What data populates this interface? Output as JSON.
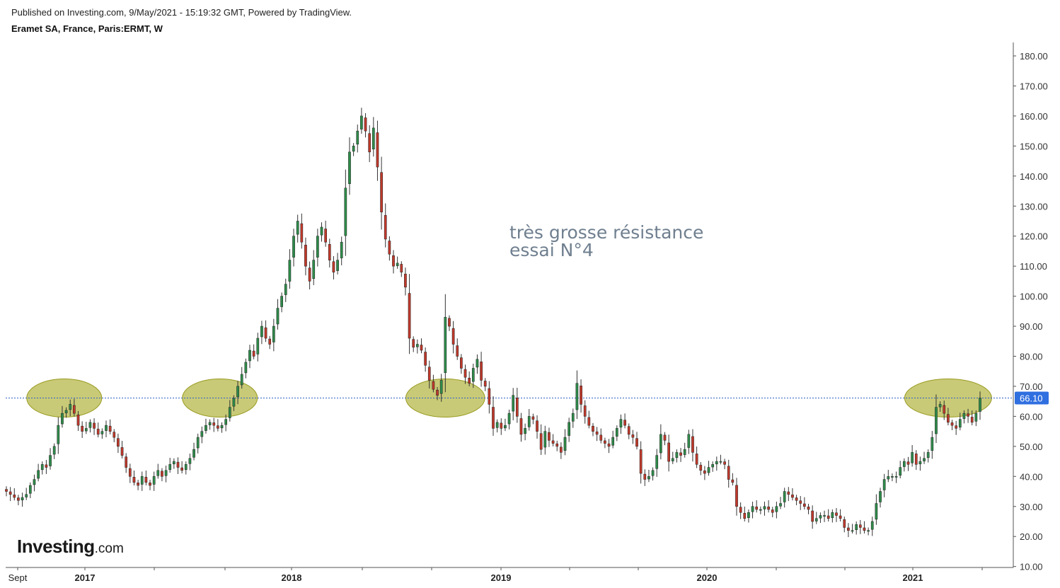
{
  "header": {
    "published": "Published on Investing.com, 9/May/2021 - 15:19:32 GMT, Powered by TradingView.",
    "symbol": "Eramet SA, France, Paris:ERMT, W"
  },
  "logo": {
    "main": "Investing",
    "suffix": ".com"
  },
  "annotation": {
    "line1": "très grosse résistance",
    "line2": "essai N°4",
    "color": "#6f7f8f"
  },
  "colors": {
    "up": "#2e8b4a",
    "down": "#c0392b",
    "ellipse_fill": "#b5b84a",
    "price_line": "#2f5fc9",
    "last_price_bg": "#2f6fe0"
  },
  "chart_data": {
    "type": "candlestick",
    "title": "Eramet SA, France, Paris:ERMT, W",
    "ylim": [
      10,
      185
    ],
    "yticks": [
      "180.00",
      "170.00",
      "160.00",
      "150.00",
      "140.00",
      "130.00",
      "120.00",
      "110.00",
      "100.00",
      "90.00",
      "80.00",
      "70.00",
      "60.00",
      "50.00",
      "40.00",
      "30.00",
      "20.00",
      "10.00"
    ],
    "xlabels": [
      "Sept",
      "2017",
      "2018",
      "2019",
      "2020",
      "2021"
    ],
    "last_price": 66.1,
    "last_price_label": "66.10",
    "highlight_level": 66.1,
    "resistance_zones": [
      {
        "from": "2016-11-06",
        "to": "2017-01-22",
        "level": 66.1
      },
      {
        "from": "2017-08-06",
        "to": "2017-10-22",
        "level": 66.1
      },
      {
        "from": "2018-09-02",
        "to": "2018-11-25",
        "level": 66.1
      },
      {
        "from": "2021-01-24",
        "to": "2021-05-02",
        "level": 66.1
      }
    ],
    "series": [
      {
        "name": "ERMT",
        "weekly_close": [
          [
            "2016-09-04",
            35
          ],
          [
            "2016-09-11",
            34
          ],
          [
            "2016-09-18",
            33
          ],
          [
            "2016-09-25",
            32
          ],
          [
            "2016-10-02",
            33
          ],
          [
            "2016-10-09",
            34
          ],
          [
            "2016-10-16",
            37
          ],
          [
            "2016-10-23",
            39
          ],
          [
            "2016-10-30",
            42
          ],
          [
            "2016-11-06",
            44
          ],
          [
            "2016-11-13",
            43
          ],
          [
            "2016-11-20",
            47
          ],
          [
            "2016-11-27",
            50
          ],
          [
            "2016-12-04",
            57
          ],
          [
            "2016-12-11",
            61
          ],
          [
            "2016-12-18",
            62
          ],
          [
            "2016-12-25",
            64
          ],
          [
            "2017-01-01",
            61
          ],
          [
            "2017-01-08",
            57
          ],
          [
            "2017-01-15",
            55
          ],
          [
            "2017-01-22",
            56
          ],
          [
            "2017-01-29",
            58
          ],
          [
            "2017-02-05",
            56
          ],
          [
            "2017-02-12",
            54
          ],
          [
            "2017-02-19",
            55
          ],
          [
            "2017-02-26",
            57
          ],
          [
            "2017-03-05",
            55
          ],
          [
            "2017-03-12",
            53
          ],
          [
            "2017-03-19",
            50
          ],
          [
            "2017-03-26",
            47
          ],
          [
            "2017-04-02",
            43
          ],
          [
            "2017-04-09",
            40
          ],
          [
            "2017-04-16",
            38
          ],
          [
            "2017-04-23",
            37
          ],
          [
            "2017-04-30",
            40
          ],
          [
            "2017-05-07",
            38
          ],
          [
            "2017-05-14",
            37
          ],
          [
            "2017-05-21",
            40
          ],
          [
            "2017-05-28",
            42
          ],
          [
            "2017-06-04",
            40
          ],
          [
            "2017-06-11",
            42
          ],
          [
            "2017-06-18",
            44
          ],
          [
            "2017-06-25",
            45
          ],
          [
            "2017-07-02",
            43
          ],
          [
            "2017-07-09",
            42
          ],
          [
            "2017-07-16",
            44
          ],
          [
            "2017-07-23",
            46
          ],
          [
            "2017-07-30",
            49
          ],
          [
            "2017-08-06",
            53
          ],
          [
            "2017-08-13",
            55
          ],
          [
            "2017-08-20",
            57
          ],
          [
            "2017-08-27",
            58
          ],
          [
            "2017-09-03",
            57
          ],
          [
            "2017-09-10",
            56
          ],
          [
            "2017-09-17",
            57
          ],
          [
            "2017-09-24",
            59
          ],
          [
            "2017-10-01",
            63
          ],
          [
            "2017-10-08",
            66
          ],
          [
            "2017-10-15",
            70
          ],
          [
            "2017-10-22",
            74
          ],
          [
            "2017-10-29",
            78
          ],
          [
            "2017-11-05",
            82
          ],
          [
            "2017-11-12",
            80
          ],
          [
            "2017-11-19",
            86
          ],
          [
            "2017-11-26",
            90
          ],
          [
            "2017-12-03",
            86
          ],
          [
            "2017-12-10",
            84
          ],
          [
            "2017-12-17",
            90
          ],
          [
            "2017-12-24",
            96
          ],
          [
            "2017-12-31",
            100
          ],
          [
            "2018-01-07",
            104
          ],
          [
            "2018-01-14",
            112
          ],
          [
            "2018-01-21",
            120
          ],
          [
            "2018-01-28",
            125
          ],
          [
            "2018-02-04",
            118
          ],
          [
            "2018-02-11",
            110
          ],
          [
            "2018-02-18",
            105
          ],
          [
            "2018-02-25",
            112
          ],
          [
            "2018-03-04",
            120
          ],
          [
            "2018-03-11",
            123
          ],
          [
            "2018-03-18",
            118
          ],
          [
            "2018-03-25",
            112
          ],
          [
            "2018-04-01",
            108
          ],
          [
            "2018-04-08",
            112
          ],
          [
            "2018-04-15",
            118
          ],
          [
            "2018-04-22",
            136
          ],
          [
            "2018-04-29",
            148
          ],
          [
            "2018-05-06",
            150
          ],
          [
            "2018-05-13",
            155
          ],
          [
            "2018-05-20",
            160
          ],
          [
            "2018-05-27",
            155
          ],
          [
            "2018-06-03",
            148
          ],
          [
            "2018-06-10",
            156
          ],
          [
            "2018-06-17",
            143
          ],
          [
            "2018-06-24",
            128
          ],
          [
            "2018-07-01",
            119
          ],
          [
            "2018-07-08",
            114
          ],
          [
            "2018-07-15",
            110
          ],
          [
            "2018-07-22",
            111
          ],
          [
            "2018-07-29",
            108
          ],
          [
            "2018-08-05",
            103
          ],
          [
            "2018-08-12",
            86
          ],
          [
            "2018-08-19",
            83
          ],
          [
            "2018-08-26",
            84
          ],
          [
            "2018-09-02",
            82
          ],
          [
            "2018-09-09",
            77
          ],
          [
            "2018-09-16",
            72
          ],
          [
            "2018-09-23",
            69
          ],
          [
            "2018-09-30",
            67
          ],
          [
            "2018-10-07",
            72
          ],
          [
            "2018-10-14",
            93
          ],
          [
            "2018-10-21",
            90
          ],
          [
            "2018-10-28",
            84
          ],
          [
            "2018-11-04",
            80
          ],
          [
            "2018-11-11",
            76
          ],
          [
            "2018-11-18",
            73
          ],
          [
            "2018-11-25",
            71
          ],
          [
            "2018-12-02",
            76
          ],
          [
            "2018-12-09",
            79
          ],
          [
            "2018-12-16",
            72
          ],
          [
            "2018-12-23",
            70
          ],
          [
            "2018-12-30",
            64
          ],
          [
            "2019-01-06",
            56
          ],
          [
            "2019-01-13",
            58
          ],
          [
            "2019-01-20",
            56
          ],
          [
            "2019-01-27",
            57
          ],
          [
            "2019-02-03",
            61
          ],
          [
            "2019-02-10",
            67
          ],
          [
            "2019-02-17",
            60
          ],
          [
            "2019-02-24",
            54
          ],
          [
            "2019-03-03",
            56
          ],
          [
            "2019-03-10",
            60
          ],
          [
            "2019-03-17",
            59
          ],
          [
            "2019-03-24",
            55
          ],
          [
            "2019-03-31",
            49
          ],
          [
            "2019-04-07",
            55
          ],
          [
            "2019-04-14",
            52
          ],
          [
            "2019-04-21",
            51
          ],
          [
            "2019-04-28",
            50
          ],
          [
            "2019-05-05",
            48
          ],
          [
            "2019-05-12",
            53
          ],
          [
            "2019-05-19",
            58
          ],
          [
            "2019-05-26",
            61
          ],
          [
            "2019-06-02",
            71
          ],
          [
            "2019-06-09",
            64
          ],
          [
            "2019-06-16",
            60
          ],
          [
            "2019-06-23",
            57
          ],
          [
            "2019-06-30",
            55
          ],
          [
            "2019-07-07",
            54
          ],
          [
            "2019-07-14",
            52
          ],
          [
            "2019-07-21",
            51
          ],
          [
            "2019-07-28",
            50
          ],
          [
            "2019-08-04",
            53
          ],
          [
            "2019-08-11",
            56
          ],
          [
            "2019-08-18",
            59
          ],
          [
            "2019-08-25",
            57
          ],
          [
            "2019-09-01",
            54
          ],
          [
            "2019-09-08",
            53
          ],
          [
            "2019-09-15",
            50
          ],
          [
            "2019-09-22",
            41
          ],
          [
            "2019-09-29",
            39
          ],
          [
            "2019-10-06",
            40
          ],
          [
            "2019-10-13",
            42
          ],
          [
            "2019-10-20",
            47
          ],
          [
            "2019-10-27",
            54
          ],
          [
            "2019-11-03",
            52
          ],
          [
            "2019-11-10",
            45
          ],
          [
            "2019-11-17",
            46
          ],
          [
            "2019-11-24",
            48
          ],
          [
            "2019-12-01",
            47
          ],
          [
            "2019-12-08",
            49
          ],
          [
            "2019-12-15",
            54
          ],
          [
            "2019-12-22",
            48
          ],
          [
            "2019-12-29",
            44
          ],
          [
            "2020-01-05",
            42
          ],
          [
            "2020-01-12",
            41
          ],
          [
            "2020-01-19",
            43
          ],
          [
            "2020-01-26",
            44
          ],
          [
            "2020-02-02",
            45
          ],
          [
            "2020-02-09",
            45
          ],
          [
            "2020-02-16",
            44
          ],
          [
            "2020-02-23",
            39
          ],
          [
            "2020-03-01",
            38
          ],
          [
            "2020-03-08",
            30
          ],
          [
            "2020-03-15",
            28
          ],
          [
            "2020-03-22",
            26
          ],
          [
            "2020-03-29",
            28
          ],
          [
            "2020-04-05",
            30
          ],
          [
            "2020-04-12",
            29
          ],
          [
            "2020-04-19",
            29
          ],
          [
            "2020-04-26",
            30
          ],
          [
            "2020-05-03",
            29
          ],
          [
            "2020-05-10",
            28
          ],
          [
            "2020-05-17",
            30
          ],
          [
            "2020-05-24",
            31
          ],
          [
            "2020-05-31",
            35
          ],
          [
            "2020-06-07",
            34
          ],
          [
            "2020-06-14",
            33
          ],
          [
            "2020-06-21",
            32
          ],
          [
            "2020-06-28",
            31
          ],
          [
            "2020-07-05",
            30
          ],
          [
            "2020-07-12",
            29
          ],
          [
            "2020-07-19",
            25
          ],
          [
            "2020-07-26",
            26
          ],
          [
            "2020-08-02",
            27
          ],
          [
            "2020-08-09",
            27
          ],
          [
            "2020-08-16",
            26
          ],
          [
            "2020-08-23",
            28
          ],
          [
            "2020-08-30",
            27
          ],
          [
            "2020-09-06",
            26
          ],
          [
            "2020-09-13",
            23
          ],
          [
            "2020-09-20",
            22
          ],
          [
            "2020-09-27",
            22
          ],
          [
            "2020-10-04",
            24
          ],
          [
            "2020-10-11",
            23
          ],
          [
            "2020-10-18",
            22
          ],
          [
            "2020-10-25",
            22
          ],
          [
            "2020-11-01",
            25
          ],
          [
            "2020-11-08",
            31
          ],
          [
            "2020-11-15",
            35
          ],
          [
            "2020-11-22",
            39
          ],
          [
            "2020-11-29",
            40
          ],
          [
            "2020-12-06",
            40
          ],
          [
            "2020-12-13",
            40
          ],
          [
            "2020-12-20",
            43
          ],
          [
            "2020-12-27",
            45
          ],
          [
            "2021-01-03",
            44
          ],
          [
            "2021-01-10",
            48
          ],
          [
            "2021-01-17",
            44
          ],
          [
            "2021-01-24",
            45
          ],
          [
            "2021-01-31",
            46
          ],
          [
            "2021-02-07",
            48
          ],
          [
            "2021-02-14",
            53
          ],
          [
            "2021-02-21",
            63
          ],
          [
            "2021-02-28",
            64
          ],
          [
            "2021-03-07",
            61
          ],
          [
            "2021-03-14",
            58
          ],
          [
            "2021-03-21",
            57
          ],
          [
            "2021-03-28",
            56
          ],
          [
            "2021-04-04",
            59
          ],
          [
            "2021-04-11",
            61
          ],
          [
            "2021-04-18",
            60
          ],
          [
            "2021-04-25",
            58
          ],
          [
            "2021-05-02",
            61
          ],
          [
            "2021-05-09",
            66.1
          ]
        ]
      }
    ]
  }
}
